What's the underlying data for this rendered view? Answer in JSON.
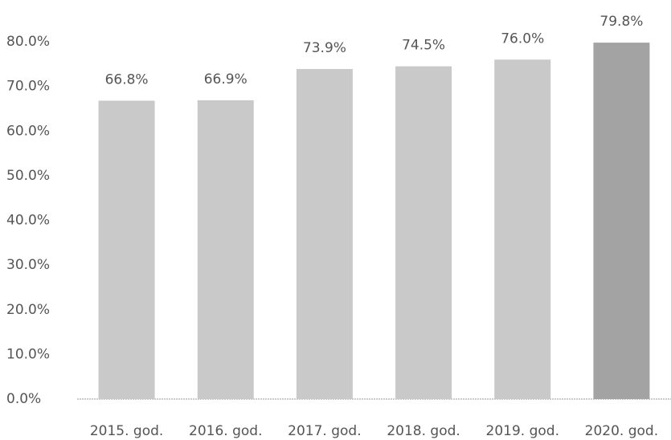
{
  "chart_data": {
    "type": "bar",
    "categories": [
      "2015. god.",
      "2016. god.",
      "2017. god.",
      "2018. god.",
      "2019. god.",
      "2020. god."
    ],
    "values": [
      66.8,
      66.9,
      73.9,
      74.5,
      76.0,
      79.8
    ],
    "value_labels": [
      "66.8%",
      "66.9%",
      "73.9%",
      "74.5%",
      "76.0%",
      "79.8%"
    ],
    "colors": [
      "#c9c9c9",
      "#c9c9c9",
      "#c9c9c9",
      "#c9c9c9",
      "#c9c9c9",
      "#a3a3a3"
    ],
    "ylim": [
      0,
      80
    ],
    "yticks": [
      {
        "value": 0,
        "label": "0.0%"
      },
      {
        "value": 10,
        "label": "10.0%"
      },
      {
        "value": 20,
        "label": "20.0%"
      },
      {
        "value": 30,
        "label": "30.0%"
      },
      {
        "value": 40,
        "label": "40.0%"
      },
      {
        "value": 50,
        "label": "50.0%"
      },
      {
        "value": 60,
        "label": "60.0%"
      },
      {
        "value": 70,
        "label": "70.0%"
      },
      {
        "value": 80,
        "label": "80.0%"
      }
    ],
    "grid": false
  }
}
